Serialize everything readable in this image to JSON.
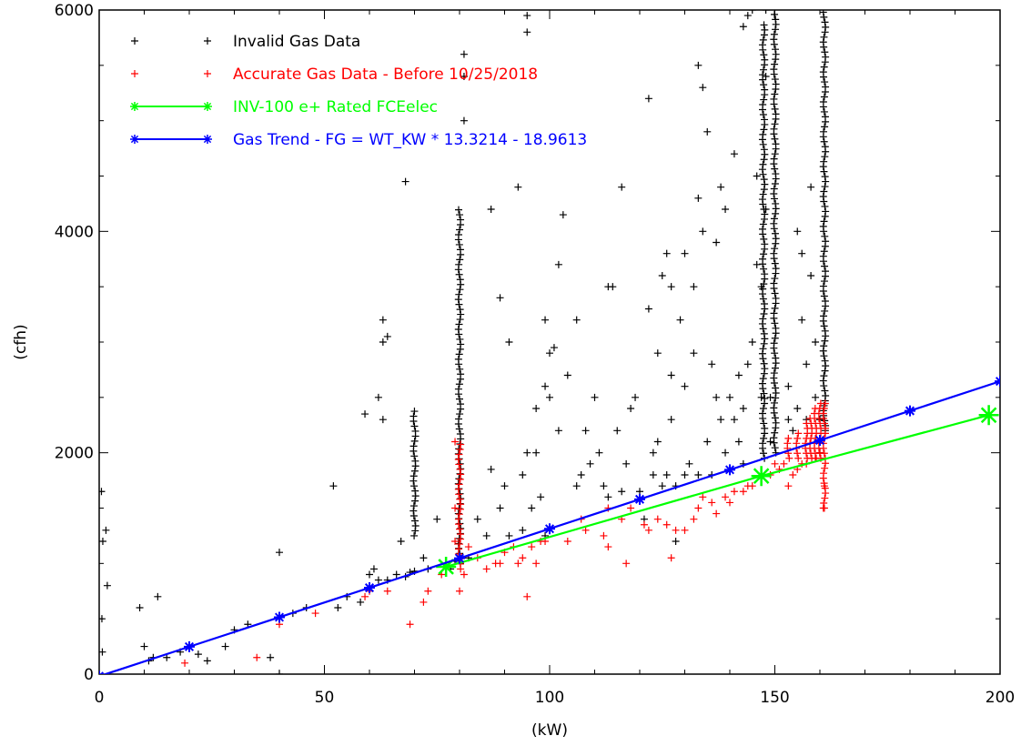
{
  "chart_data": {
    "type": "scatter",
    "xlabel": "(kW)",
    "ylabel": "(cfh)",
    "xlim": [
      0,
      200
    ],
    "ylim": [
      0,
      6000
    ],
    "x_ticks": [
      0,
      50,
      100,
      150,
      200
    ],
    "y_ticks": [
      0,
      2000,
      4000,
      6000
    ],
    "legend_position": "top-left",
    "grid": false,
    "series": [
      {
        "name": "Invalid Gas Data",
        "kind": "scatter",
        "marker": "plus",
        "color": "#000000",
        "points": [
          [
            0.5,
            1650
          ],
          [
            0.8,
            1200
          ],
          [
            1.5,
            1300
          ],
          [
            1.8,
            800
          ],
          [
            0.6,
            500
          ],
          [
            0.7,
            200
          ],
          [
            9,
            600
          ],
          [
            10,
            250
          ],
          [
            11,
            120
          ],
          [
            12,
            150
          ],
          [
            13,
            700
          ],
          [
            15,
            150
          ],
          [
            18,
            200
          ],
          [
            20,
            250
          ],
          [
            22,
            180
          ],
          [
            24,
            120
          ],
          [
            28,
            250
          ],
          [
            30,
            400
          ],
          [
            33,
            450
          ],
          [
            38,
            150
          ],
          [
            40,
            1100
          ],
          [
            40,
            0
          ],
          [
            43,
            550
          ],
          [
            46,
            600
          ],
          [
            52,
            1700
          ],
          [
            53,
            600
          ],
          [
            55,
            700
          ],
          [
            58,
            650
          ],
          [
            59,
            2350
          ],
          [
            60,
            900
          ],
          [
            61,
            950
          ],
          [
            62,
            850
          ],
          [
            62,
            2500
          ],
          [
            63,
            2300
          ],
          [
            63,
            3200
          ],
          [
            63,
            3000
          ],
          [
            64,
            3050
          ],
          [
            64,
            850
          ],
          [
            66,
            900
          ],
          [
            67,
            1200
          ],
          [
            68,
            880
          ],
          [
            68,
            4450
          ],
          [
            69,
            920
          ],
          [
            70,
            930
          ],
          [
            72,
            1050
          ],
          [
            73,
            950
          ],
          [
            75,
            1400
          ],
          [
            78,
            950
          ],
          [
            79,
            1020
          ],
          [
            81,
            5600
          ],
          [
            81,
            5400
          ],
          [
            81,
            5000
          ],
          [
            82,
            1050
          ],
          [
            84,
            1400
          ],
          [
            86,
            1250
          ],
          [
            87,
            1850
          ],
          [
            87,
            4200
          ],
          [
            89,
            3400
          ],
          [
            89,
            1500
          ],
          [
            90,
            1700
          ],
          [
            91,
            1250
          ],
          [
            91,
            3000
          ],
          [
            93,
            4400
          ],
          [
            94,
            1800
          ],
          [
            94,
            1300
          ],
          [
            95,
            2000
          ],
          [
            95,
            5800
          ],
          [
            95,
            5950
          ],
          [
            96,
            1500
          ],
          [
            97,
            2400
          ],
          [
            97,
            2000
          ],
          [
            98,
            1600
          ],
          [
            99,
            2600
          ],
          [
            99,
            1250
          ],
          [
            99,
            3200
          ],
          [
            100,
            2900
          ],
          [
            100,
            2500
          ],
          [
            101,
            2950
          ],
          [
            102,
            3700
          ],
          [
            102,
            2200
          ],
          [
            103,
            4150
          ],
          [
            104,
            2700
          ],
          [
            106,
            1700
          ],
          [
            106,
            3200
          ],
          [
            107,
            1800
          ],
          [
            108,
            2200
          ],
          [
            109,
            1900
          ],
          [
            110,
            2500
          ],
          [
            111,
            2000
          ],
          [
            112,
            1700
          ],
          [
            113,
            1600
          ],
          [
            113,
            3500
          ],
          [
            114,
            3500
          ],
          [
            115,
            2200
          ],
          [
            116,
            1650
          ],
          [
            116,
            4400
          ],
          [
            117,
            1900
          ],
          [
            118,
            2400
          ],
          [
            119,
            2500
          ],
          [
            120,
            1650
          ],
          [
            121,
            1400
          ],
          [
            122,
            5200
          ],
          [
            122,
            3300
          ],
          [
            123,
            2000
          ],
          [
            123,
            1800
          ],
          [
            124,
            2100
          ],
          [
            124,
            2900
          ],
          [
            125,
            3600
          ],
          [
            125,
            1700
          ],
          [
            126,
            1800
          ],
          [
            126,
            3800
          ],
          [
            127,
            2300
          ],
          [
            127,
            2700
          ],
          [
            127,
            3500
          ],
          [
            128,
            1700
          ],
          [
            128,
            1200
          ],
          [
            129,
            3200
          ],
          [
            130,
            2600
          ],
          [
            130,
            3800
          ],
          [
            130,
            1800
          ],
          [
            131,
            1900
          ],
          [
            132,
            3500
          ],
          [
            132,
            2900
          ],
          [
            133,
            1800
          ],
          [
            133,
            4300
          ],
          [
            133,
            5500
          ],
          [
            134,
            4000
          ],
          [
            134,
            5300
          ],
          [
            135,
            2100
          ],
          [
            135,
            4900
          ],
          [
            136,
            1800
          ],
          [
            136,
            2800
          ],
          [
            137,
            2500
          ],
          [
            137,
            3900
          ],
          [
            138,
            2300
          ],
          [
            138,
            4400
          ],
          [
            139,
            2000
          ],
          [
            139,
            4200
          ],
          [
            140,
            2500
          ],
          [
            141,
            2300
          ],
          [
            141,
            4700
          ],
          [
            142,
            2100
          ],
          [
            142,
            2700
          ],
          [
            143,
            2400
          ],
          [
            143,
            5850
          ],
          [
            143,
            1900
          ],
          [
            144,
            2800
          ],
          [
            144,
            5950
          ],
          [
            145,
            3000
          ],
          [
            145,
            6000
          ],
          [
            146,
            4500
          ],
          [
            146,
            3700
          ],
          [
            147,
            2500
          ],
          [
            147,
            3500
          ],
          [
            148,
            4200
          ],
          [
            148,
            6000
          ],
          [
            148,
            5400
          ],
          [
            149,
            2100
          ],
          [
            149,
            2500
          ],
          [
            153,
            2600
          ],
          [
            153,
            2300
          ],
          [
            154,
            2200
          ],
          [
            155,
            2400
          ],
          [
            155,
            4000
          ],
          [
            156,
            3200
          ],
          [
            156,
            3800
          ],
          [
            157,
            2300
          ],
          [
            157,
            2800
          ],
          [
            158,
            3600
          ],
          [
            158,
            4400
          ],
          [
            159,
            2500
          ],
          [
            159,
            3000
          ],
          [
            160,
            2300
          ],
          [
            160,
            2000
          ]
        ],
        "columns": [
          {
            "x": 70,
            "y_from": 1250,
            "y_to": 2400
          },
          {
            "x": 80,
            "y_from": 1000,
            "y_to": 4200
          },
          {
            "x": 147.5,
            "y_from": 1950,
            "y_to": 5900
          },
          {
            "x": 150,
            "y_from": 2000,
            "y_to": 6000
          },
          {
            "x": 161,
            "y_from": 2200,
            "y_to": 6000
          }
        ]
      },
      {
        "name": "Accurate Gas Data - Before 10/25/2018",
        "kind": "scatter",
        "marker": "plus",
        "color": "#ff0000",
        "points": [
          [
            19,
            100
          ],
          [
            35,
            150
          ],
          [
            40,
            450
          ],
          [
            48,
            550
          ],
          [
            59,
            700
          ],
          [
            60,
            750
          ],
          [
            64,
            750
          ],
          [
            69,
            450
          ],
          [
            72,
            650
          ],
          [
            73,
            750
          ],
          [
            76,
            900
          ],
          [
            77,
            950
          ],
          [
            79,
            2100
          ],
          [
            79,
            1500
          ],
          [
            79,
            1200
          ],
          [
            80,
            750
          ],
          [
            81,
            900
          ],
          [
            82,
            1150
          ],
          [
            84,
            1050
          ],
          [
            86,
            950
          ],
          [
            88,
            1000
          ],
          [
            89,
            1000
          ],
          [
            90,
            1100
          ],
          [
            92,
            1150
          ],
          [
            93,
            1000
          ],
          [
            94,
            1050
          ],
          [
            95,
            700
          ],
          [
            96,
            1150
          ],
          [
            97,
            1000
          ],
          [
            98,
            1200
          ],
          [
            99,
            1200
          ],
          [
            104,
            1200
          ],
          [
            107,
            1400
          ],
          [
            108,
            1300
          ],
          [
            112,
            1250
          ],
          [
            113,
            1150
          ],
          [
            113,
            1500
          ],
          [
            116,
            1400
          ],
          [
            117,
            1000
          ],
          [
            118,
            1500
          ],
          [
            121,
            1350
          ],
          [
            122,
            1300
          ],
          [
            124,
            1400
          ],
          [
            126,
            1350
          ],
          [
            127,
            1050
          ],
          [
            128,
            1300
          ],
          [
            130,
            1300
          ],
          [
            132,
            1400
          ],
          [
            133,
            1500
          ],
          [
            134,
            1600
          ],
          [
            136,
            1550
          ],
          [
            137,
            1450
          ],
          [
            139,
            1600
          ],
          [
            140,
            1550
          ],
          [
            141,
            1650
          ],
          [
            143,
            1650
          ],
          [
            144,
            1700
          ],
          [
            145,
            1700
          ],
          [
            149,
            1800
          ],
          [
            150,
            1900
          ],
          [
            151,
            1850
          ],
          [
            152,
            1900
          ],
          [
            153,
            1700
          ],
          [
            154,
            1800
          ],
          [
            155,
            1850
          ],
          [
            156,
            1900
          ],
          [
            157,
            1900
          ],
          [
            159,
            1950
          ],
          [
            160,
            2000
          ],
          [
            161,
            1700
          ],
          [
            161,
            1500
          ]
        ],
        "columns": [
          {
            "x": 80,
            "y_from": 950,
            "y_to": 2100
          },
          {
            "x": 153,
            "y_from": 1950,
            "y_to": 2150
          },
          {
            "x": 155,
            "y_from": 1950,
            "y_to": 2200
          },
          {
            "x": 157,
            "y_from": 1950,
            "y_to": 2300
          },
          {
            "x": 158,
            "y_from": 1950,
            "y_to": 2350
          },
          {
            "x": 159,
            "y_from": 1950,
            "y_to": 2400
          },
          {
            "x": 160,
            "y_from": 1950,
            "y_to": 2450
          },
          {
            "x": 161,
            "y_from": 1500,
            "y_to": 2450
          }
        ]
      },
      {
        "name": "INV-100 e+ Rated FCEelec",
        "kind": "line",
        "marker": "asterisk",
        "color": "#00ff00",
        "x": [
          77,
          147,
          197.5
        ],
        "y": [
          970,
          1790,
          2340
        ]
      },
      {
        "name": "Gas Trend - FG = WT_KW * 13.3214 - 18.9613",
        "kind": "line",
        "marker": "asterisk",
        "color": "#0000ff",
        "x": [
          0,
          20,
          40,
          60,
          80,
          100,
          120,
          140,
          160,
          180,
          200
        ],
        "y": [
          -18.96,
          247.47,
          513.9,
          780.32,
          1046.75,
          1313.18,
          1579.61,
          1846.04,
          2112.46,
          2378.89,
          2645.32
        ]
      }
    ]
  }
}
